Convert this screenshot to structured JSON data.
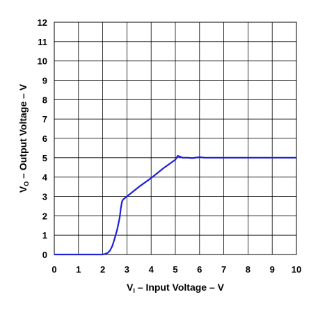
{
  "chart_data": {
    "type": "line",
    "xlabel": {
      "prefix": "V",
      "sub": "I",
      "suffix": " – Input Voltage – V"
    },
    "ylabel": {
      "prefix": "V",
      "sub": "O",
      "suffix": " – Output Voltage – V"
    },
    "xlim": [
      0,
      10
    ],
    "ylim": [
      0,
      12
    ],
    "x_ticks": [
      "0",
      "1",
      "2",
      "3",
      "4",
      "5",
      "6",
      "7",
      "8",
      "9",
      "10"
    ],
    "y_ticks": [
      "0",
      "1",
      "2",
      "3",
      "4",
      "5",
      "6",
      "7",
      "8",
      "9",
      "10",
      "11",
      "12"
    ],
    "grid": true,
    "line_color": "#1f1fd6",
    "series": [
      {
        "x": [
          0,
          1.0,
          2.0,
          2.1,
          2.2,
          2.3,
          2.4,
          2.5,
          2.6,
          2.65,
          2.7,
          2.75,
          2.8,
          2.85,
          2.9,
          3.0,
          3.5,
          4.0,
          4.5,
          5.0,
          5.1,
          5.2,
          5.3,
          5.5,
          5.7,
          6.0,
          6.2,
          6.5,
          7.0,
          8.0,
          9.0,
          10.0
        ],
        "y": [
          0,
          0,
          0,
          0.03,
          0.08,
          0.2,
          0.45,
          0.85,
          1.3,
          1.6,
          1.9,
          2.4,
          2.75,
          2.85,
          2.9,
          3.0,
          3.5,
          3.95,
          4.45,
          4.9,
          5.1,
          5.05,
          5.0,
          5.0,
          4.98,
          5.03,
          5.0,
          5.0,
          5.0,
          5.0,
          5.0,
          5.0
        ]
      }
    ]
  }
}
